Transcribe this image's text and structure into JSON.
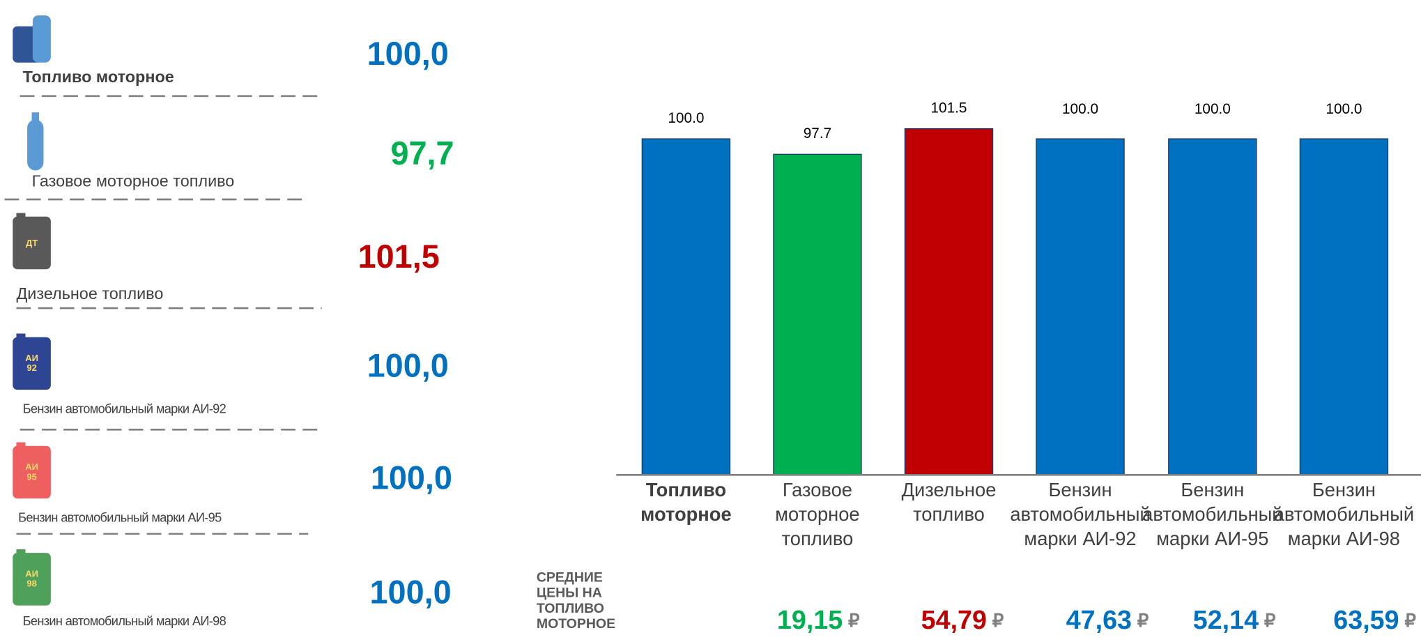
{
  "chart_data": {
    "type": "bar",
    "categories": [
      "Топливо моторное",
      "Газовое моторное топливо",
      "Дизельное топливо",
      "Бензин автомобильный марки АИ-92",
      "Бензин автомобильный марки АИ-95",
      "Бензин автомобильный марки АИ-98"
    ],
    "values": [
      100.0,
      97.7,
      101.5,
      100.0,
      100.0,
      100.0
    ],
    "value_labels": [
      "100.0",
      "97.7",
      "101.5",
      "100.0",
      "100.0",
      "100.0"
    ],
    "colors": [
      "#0070c0",
      "#00b050",
      "#c00000",
      "#0070c0",
      "#0070c0",
      "#0070c0"
    ],
    "ylim": [
      50,
      105
    ]
  },
  "panel": {
    "items": [
      {
        "label": "Топливо моторное",
        "value": "100,0",
        "color": "#0070c0",
        "icon": "",
        "icon_color": "#2f5597"
      },
      {
        "label": "Газовое моторное топливо",
        "value": "97,7",
        "color": "#00b050",
        "icon": "",
        "icon_color": "#5b9bd5"
      },
      {
        "label": "Дизельное топливо",
        "value": "101,5",
        "color": "#c00000",
        "icon": "ДТ",
        "icon_color": "#595959"
      },
      {
        "label": "Бензин автомобильный марки АИ-92",
        "value": "100,0",
        "color": "#0070c0",
        "icon": "АИ 92",
        "icon_color": "#2e4593"
      },
      {
        "label": "Бензин автомобильный марки АИ-95",
        "value": "100,0",
        "color": "#0070c0",
        "icon": "АИ 95",
        "icon_color": "#ee5f5f"
      },
      {
        "label": "Бензин автомобильный марки АИ-98",
        "value": "100,0",
        "color": "#0070c0",
        "icon": "АИ 98",
        "icon_color": "#4ea05a"
      }
    ]
  },
  "prices": {
    "title": "СРЕДНИЕ ЦЕНЫ НА ТОПЛИВО МОТОРНОЕ",
    "currency": "₽",
    "items": [
      {
        "value": "19,15",
        "color": "#00b050"
      },
      {
        "value": "54,79",
        "color": "#c00000"
      },
      {
        "value": "47,63",
        "color": "#0070c0"
      },
      {
        "value": "52,14",
        "color": "#0070c0"
      },
      {
        "value": "63,59",
        "color": "#0070c0"
      }
    ]
  }
}
